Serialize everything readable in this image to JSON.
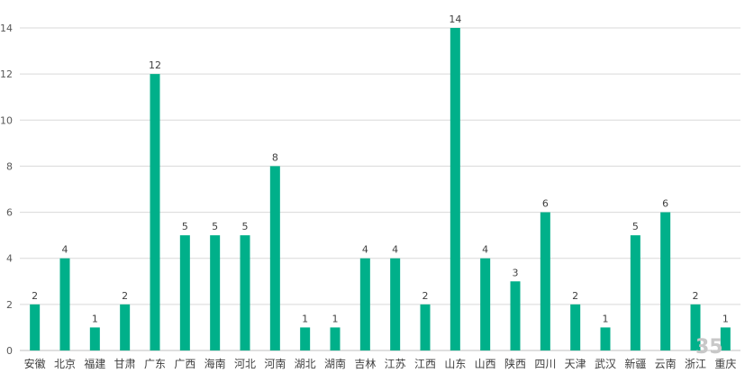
{
  "chart_data": {
    "type": "bar",
    "categories": [
      "安徽",
      "北京",
      "福建",
      "甘肃",
      "广东",
      "广西",
      "海南",
      "河北",
      "河南",
      "湖北",
      "湖南",
      "吉林",
      "江苏",
      "江西",
      "山东",
      "山西",
      "陕西",
      "四川",
      "天津",
      "武汉",
      "新疆",
      "云南",
      "浙江",
      "重庆"
    ],
    "values": [
      2,
      4,
      1,
      2,
      12,
      5,
      5,
      5,
      8,
      1,
      1,
      4,
      4,
      2,
      14,
      4,
      3,
      6,
      2,
      1,
      5,
      6,
      2,
      1
    ],
    "title": "",
    "xlabel": "",
    "ylabel": "",
    "ylim": [
      0,
      14
    ],
    "yticks": [
      0,
      2,
      4,
      6,
      8,
      10,
      12,
      14
    ],
    "grid": true,
    "bar_color": "#00b08a",
    "data_labels": true
  },
  "watermark": "35"
}
